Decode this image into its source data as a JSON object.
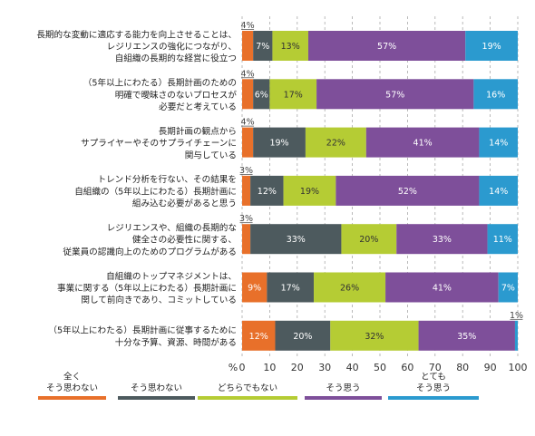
{
  "chart_data": {
    "type": "bar",
    "orientation": "horizontal",
    "stacked": true,
    "xlim": [
      0,
      100
    ],
    "xticks": [
      "0",
      "10",
      "20",
      "30",
      "40",
      "50",
      "60",
      "70",
      "80",
      "90",
      "100"
    ],
    "xunit": "%",
    "grid": "vertical dashed",
    "legend_position": "bottom",
    "categories": [
      [
        "長期的な変動に適応する能力を向上させることは、",
        "レジリエンスの強化につながり、",
        "自組織の長期的な経営に役立つ"
      ],
      [
        "（5年以上にわたる）長期計画のための",
        "明確で曖昧さのないプロセスが",
        "必要だと考えている"
      ],
      [
        "長期計画の観点から",
        "サプライヤーやそのサプライチェーンに",
        "関与している"
      ],
      [
        "トレンド分析を行ない、その結果を",
        "自組織の（5年以上にわたる）長期計画に",
        "組み込む必要があると思う"
      ],
      [
        "レジリエンスや、組織の長期的な",
        "健全さの必要性に関する、",
        "従業員の認識向上のためのプログラムがある"
      ],
      [
        "自組織のトップマネジメントは、",
        "事業に関する（5年以上にわたる）長期計画に",
        "関して前向きであり、コミットしている"
      ],
      [
        "（5年以上にわたる）長期計画に従事するために",
        "十分な予算、資源、時間がある"
      ]
    ],
    "series": [
      {
        "name": [
          "全く",
          "そう思わない"
        ],
        "color": "#e8702a",
        "values": [
          4,
          4,
          4,
          3,
          3,
          9,
          12
        ]
      },
      {
        "name": [
          "そう思わない"
        ],
        "color": "#4d5a5e",
        "values": [
          7,
          6,
          19,
          12,
          33,
          17,
          20
        ]
      },
      {
        "name": [
          "どちらでもない"
        ],
        "color": "#b5cc34",
        "values": [
          13,
          17,
          22,
          19,
          20,
          26,
          32
        ]
      },
      {
        "name": [
          "そう思う"
        ],
        "color": "#7e4f9a",
        "values": [
          57,
          57,
          41,
          52,
          33,
          41,
          35
        ]
      },
      {
        "name": [
          "とても",
          "そう思う"
        ],
        "color": "#2b9acf",
        "values": [
          19,
          16,
          14,
          14,
          11,
          7,
          1
        ]
      }
    ]
  }
}
